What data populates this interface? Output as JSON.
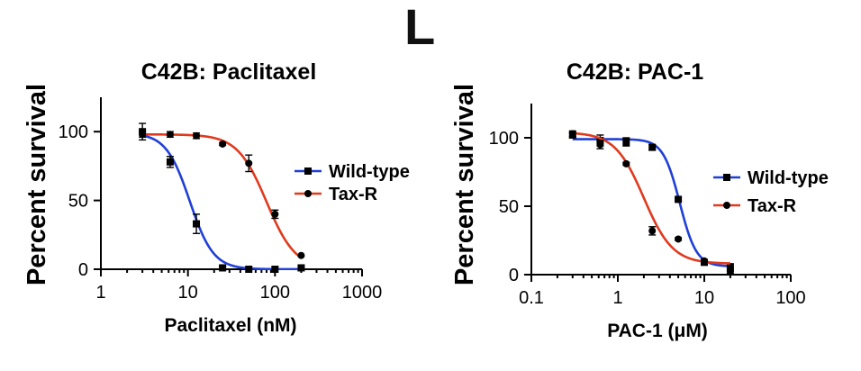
{
  "panel_label": "L",
  "chart_data": [
    {
      "type": "scatter",
      "title": "C42B: Paclitaxel",
      "xlabel": "Paclitaxel (nM)",
      "ylabel": "Percent survival",
      "xscale": "log",
      "xlim": [
        1,
        1000
      ],
      "ylim": [
        0,
        125
      ],
      "xticks": [
        1,
        10,
        100,
        1000
      ],
      "xtick_labels": [
        "1",
        "10",
        "100",
        "1000"
      ],
      "yticks": [
        0,
        50,
        100
      ],
      "ytick_labels": [
        "0",
        "50",
        "100"
      ],
      "legend_position": "right",
      "series": [
        {
          "name": "Wild-type",
          "color": "#1f3fd6",
          "marker": "square",
          "x": [
            3,
            6.25,
            12.5,
            25,
            50,
            100,
            200
          ],
          "y": [
            100,
            78,
            33,
            1,
            0,
            0,
            1
          ],
          "err": [
            6,
            4,
            7,
            1,
            0,
            0,
            0
          ],
          "fit": {
            "top": 99,
            "bottom": 0,
            "ic50": 10.5,
            "hill": 3.2
          }
        },
        {
          "name": "Tax-R",
          "color": "#e03a1e",
          "marker": "circle",
          "x": [
            3,
            6.25,
            12.5,
            25,
            50,
            100,
            200
          ],
          "y": [
            98,
            98,
            97,
            91,
            77,
            40,
            10
          ],
          "err": [
            2,
            2,
            2,
            1,
            6,
            3,
            0
          ],
          "fit": {
            "top": 98,
            "bottom": 0,
            "ic50": 80,
            "hill": 2.6
          }
        }
      ]
    },
    {
      "type": "scatter",
      "title": "C42B: PAC-1",
      "xlabel": "PAC-1 (μM)",
      "ylabel": "Percent survival",
      "xscale": "log",
      "xlim": [
        0.1,
        100
      ],
      "ylim": [
        0,
        125
      ],
      "xticks": [
        0.1,
        1,
        10,
        100
      ],
      "xtick_labels": [
        "0.1",
        "1",
        "10",
        "100"
      ],
      "yticks": [
        0,
        50,
        100
      ],
      "ytick_labels": [
        "0",
        "50",
        "100"
      ],
      "legend_position": "right",
      "series": [
        {
          "name": "Wild-type",
          "color": "#1f3fd6",
          "marker": "square",
          "x": [
            0.3,
            0.625,
            1.25,
            2.5,
            5,
            10,
            20
          ],
          "y": [
            102,
            98,
            97,
            93,
            55,
            9,
            5
          ],
          "err": [
            2,
            4,
            3,
            2,
            1,
            1,
            3
          ],
          "fit": {
            "top": 99,
            "bottom": 6,
            "ic50": 5.2,
            "hill": 4.5
          }
        },
        {
          "name": "Tax-R",
          "color": "#e03a1e",
          "marker": "circle",
          "x": [
            0.3,
            0.625,
            1.25,
            2.5,
            5,
            10,
            20
          ],
          "y": [
            103,
            95,
            81,
            32,
            26,
            10,
            3
          ],
          "err": [
            2,
            3,
            1,
            3,
            1,
            1,
            2
          ],
          "fit": {
            "top": 104,
            "bottom": 8,
            "ic50": 2.0,
            "hill": 2.6
          }
        }
      ]
    }
  ]
}
